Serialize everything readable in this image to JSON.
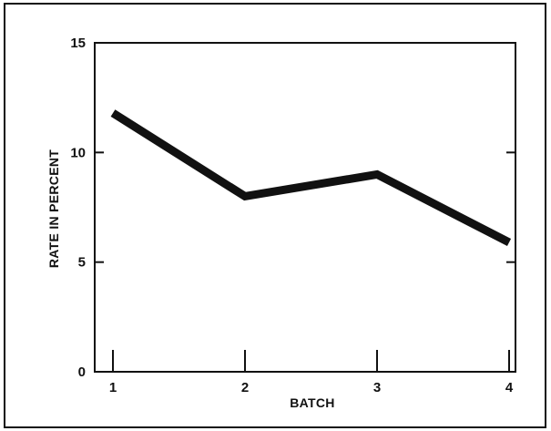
{
  "chart_data": {
    "type": "line",
    "title": "",
    "xlabel": "BATCH",
    "ylabel": "RATE IN PERCENT",
    "x": [
      1,
      2,
      3,
      4
    ],
    "x_tick_labels": [
      "1",
      "2",
      "3",
      "4"
    ],
    "y_ticks": [
      0,
      5,
      10,
      15
    ],
    "y_tick_labels": [
      "0",
      "5",
      "10",
      "15"
    ],
    "xlim": [
      1,
      4
    ],
    "ylim": [
      0,
      15
    ],
    "grid": false,
    "series": [
      {
        "values": [
          11.8,
          8.0,
          9.0,
          5.9
        ],
        "color": "#111111"
      }
    ]
  }
}
